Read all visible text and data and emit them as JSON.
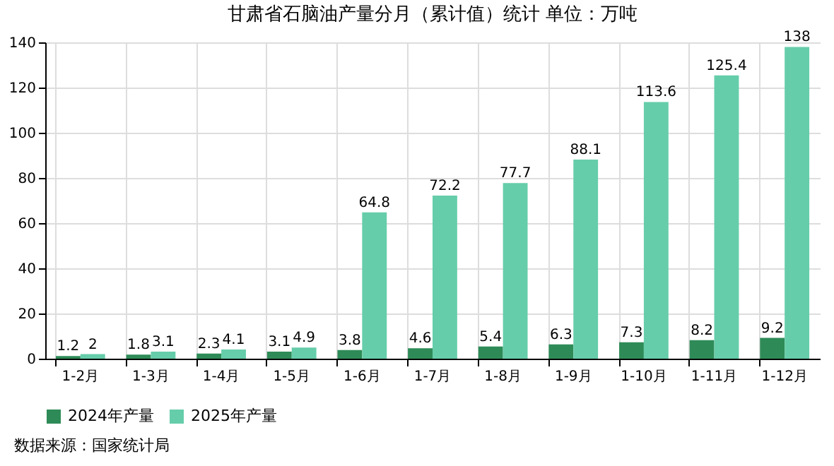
{
  "chart_data": {
    "type": "bar",
    "title": "甘肃省石脑油产量分月（累计值）统计  单位：万吨",
    "categories": [
      "1-2月",
      "1-3月",
      "1-4月",
      "1-5月",
      "1-6月",
      "1-7月",
      "1-8月",
      "1-9月",
      "1-10月",
      "1-11月",
      "1-12月"
    ],
    "series": [
      {
        "name": "2024年产量",
        "color": "#2e8b57",
        "values": [
          1.2,
          1.8,
          2.3,
          3.1,
          3.8,
          4.6,
          5.4,
          6.3,
          7.3,
          8.2,
          9.2
        ]
      },
      {
        "name": "2025年产量",
        "color": "#66cdaa",
        "values": [
          2,
          3.1,
          4.1,
          4.9,
          64.8,
          72.2,
          77.7,
          88.1,
          113.6,
          125.4,
          138
        ]
      }
    ],
    "ylim": [
      0,
      140
    ],
    "yticks": [
      0,
      20,
      40,
      60,
      80,
      100,
      120,
      140
    ],
    "grid": true,
    "legend": "bottom",
    "data_labels": true,
    "annotations": [
      "数据来源：国家统计局"
    ]
  }
}
